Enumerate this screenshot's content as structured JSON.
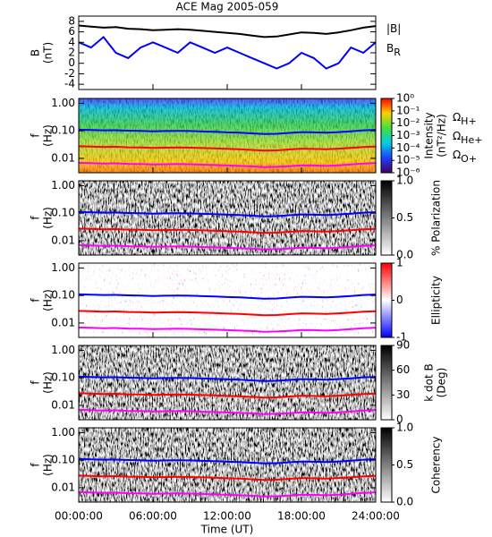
{
  "chart_data": [
    {
      "type": "line",
      "title": "ACE Mag 2005-059",
      "ylabel": [
        "B",
        "(nT)"
      ],
      "x": [
        0,
        1,
        2,
        3,
        4,
        5,
        6,
        7,
        8,
        9,
        10,
        11,
        12,
        13,
        14,
        15,
        16,
        17,
        18,
        19,
        20,
        21,
        22,
        23,
        24
      ],
      "series": [
        {
          "name": "|B|",
          "color": "#000000",
          "values": [
            7.2,
            7.0,
            6.8,
            6.9,
            6.6,
            6.5,
            6.3,
            6.4,
            6.5,
            6.4,
            6.2,
            6.0,
            5.8,
            5.6,
            5.3,
            5.0,
            5.1,
            5.5,
            5.9,
            5.8,
            5.6,
            5.9,
            6.3,
            6.8,
            7.1
          ]
        },
        {
          "name": "B",
          "subscript": "R",
          "color": "#0000ff",
          "values": [
            4,
            3,
            5,
            2,
            1,
            3,
            4,
            3,
            2,
            4,
            3,
            2,
            3,
            2,
            1,
            0,
            -1,
            0,
            2,
            1,
            -1,
            0,
            3,
            2,
            4
          ]
        }
      ],
      "xlim": [
        0,
        24
      ],
      "ylim": [
        -5,
        9
      ],
      "yticks": [
        -4,
        -2,
        0,
        2,
        4,
        6,
        8
      ]
    },
    {
      "type": "spectrogram",
      "palette": "rainbow",
      "ylabel": [
        "f",
        "(Hz)"
      ],
      "log_y": true,
      "xlim": [
        0,
        24
      ],
      "ylim": [
        0.003,
        1.5
      ],
      "yticks": [
        0.01,
        {
          "value": 0.1,
          "label": "0.10"
        },
        {
          "value": 1,
          "label": "1.00"
        }
      ],
      "colorbar": {
        "label": [
          "Intensity",
          "(nT²/Hz)"
        ],
        "log": true,
        "lim": [
          1e-06,
          1
        ],
        "ticks": [
          {
            "value": 1,
            "label": "10⁰"
          },
          {
            "value": 0.1,
            "label": "10⁻¹"
          },
          {
            "value": 0.01,
            "label": "10⁻²"
          },
          {
            "value": 0.001,
            "label": "10⁻³"
          },
          {
            "value": 0.0001,
            "label": "10⁻⁴"
          },
          {
            "value": 1e-05,
            "label": "10⁻⁵"
          },
          {
            "value": 1e-06,
            "label": "10⁻⁶"
          }
        ]
      },
      "x": [
        0,
        1,
        2,
        3,
        4,
        5,
        6,
        7,
        8,
        9,
        10,
        11,
        12,
        13,
        14,
        15,
        16,
        17,
        18,
        19,
        20,
        21,
        22,
        23,
        24
      ],
      "series": [
        {
          "name": "Ω",
          "subscript": "H+",
          "color": "#0000ff",
          "values": [
            0.11,
            0.107,
            0.104,
            0.105,
            0.101,
            0.099,
            0.096,
            0.098,
            0.099,
            0.098,
            0.095,
            0.092,
            0.088,
            0.085,
            0.081,
            0.076,
            0.078,
            0.084,
            0.09,
            0.088,
            0.085,
            0.09,
            0.096,
            0.104,
            0.108
          ]
        },
        {
          "name": "Ω",
          "subscript": "He+",
          "color": "#ff0000",
          "values": [
            0.0275,
            0.0267,
            0.026,
            0.0263,
            0.0252,
            0.0248,
            0.024,
            0.0245,
            0.0248,
            0.0245,
            0.0237,
            0.023,
            0.022,
            0.0213,
            0.0202,
            0.019,
            0.0195,
            0.021,
            0.0225,
            0.022,
            0.0213,
            0.0225,
            0.024,
            0.026,
            0.027
          ]
        },
        {
          "name": "Ω",
          "subscript": "O+",
          "color": "#ff00ff",
          "values": [
            0.0069,
            0.0067,
            0.0065,
            0.0066,
            0.0063,
            0.0062,
            0.006,
            0.0061,
            0.0062,
            0.0061,
            0.0059,
            0.0057,
            0.0055,
            0.0053,
            0.0051,
            0.0048,
            0.0049,
            0.0052,
            0.0056,
            0.0055,
            0.0053,
            0.0056,
            0.006,
            0.0065,
            0.0068
          ]
        }
      ]
    },
    {
      "type": "spectrogram",
      "palette": "grey",
      "ylabel": [
        "f",
        "(Hz)"
      ],
      "log_y": true,
      "xlim": [
        0,
        24
      ],
      "ylim": [
        0.003,
        1.5
      ],
      "yticks": [
        0.01,
        {
          "value": 0.1,
          "label": "0.10"
        },
        {
          "value": 1,
          "label": "1.00"
        }
      ],
      "colorbar": {
        "label": [
          "% Polarization"
        ],
        "lim": [
          0,
          1
        ],
        "ticks": [
          {
            "value": 0,
            "label": "0.0"
          },
          0.5,
          {
            "value": 1,
            "label": "1.0"
          }
        ]
      }
    },
    {
      "type": "spectrogram",
      "palette": "redblue",
      "ylabel": [
        "f",
        "(Hz)"
      ],
      "log_y": true,
      "xlim": [
        0,
        24
      ],
      "ylim": [
        0.003,
        1.5
      ],
      "yticks": [
        0.01,
        {
          "value": 0.1,
          "label": "0.10"
        },
        {
          "value": 1,
          "label": "1.00"
        }
      ],
      "colorbar": {
        "label": [
          "Ellipticity"
        ],
        "lim": [
          -1,
          1
        ],
        "ticks": [
          -1,
          0,
          1
        ]
      }
    },
    {
      "type": "spectrogram",
      "palette": "grey",
      "ylabel": [
        "f",
        "(Hz)"
      ],
      "log_y": true,
      "xlim": [
        0,
        24
      ],
      "ylim": [
        0.003,
        1.5
      ],
      "yticks": [
        0.01,
        {
          "value": 0.1,
          "label": "0.10"
        },
        {
          "value": 1,
          "label": "1.00"
        }
      ],
      "colorbar": {
        "label": [
          "k dot B",
          "(Deg)"
        ],
        "lim": [
          0,
          90
        ],
        "ticks": [
          0,
          30,
          60,
          90
        ]
      }
    },
    {
      "type": "spectrogram",
      "palette": "grey",
      "ylabel": [
        "f",
        "(Hz)"
      ],
      "log_y": true,
      "xlim": [
        0,
        24
      ],
      "ylim": [
        0.003,
        1.5
      ],
      "yticks": [
        0.01,
        {
          "value": 0.1,
          "label": "0.10"
        },
        {
          "value": 1,
          "label": "1.00"
        }
      ],
      "colorbar": {
        "label": [
          "Coherency"
        ],
        "lim": [
          0,
          1
        ],
        "ticks": [
          {
            "value": 0,
            "label": "0.0"
          },
          0.5,
          {
            "value": 1,
            "label": "1.0"
          }
        ]
      },
      "xlabel": "Time (UT)",
      "xticks": [
        {
          "value": 0,
          "label": "00:00:00"
        },
        {
          "value": 6,
          "label": "06:00:00"
        },
        {
          "value": 12,
          "label": "12:00:00"
        },
        {
          "value": 18,
          "label": "18:00:00"
        },
        {
          "value": 24,
          "label": "24:00:00"
        }
      ]
    }
  ]
}
